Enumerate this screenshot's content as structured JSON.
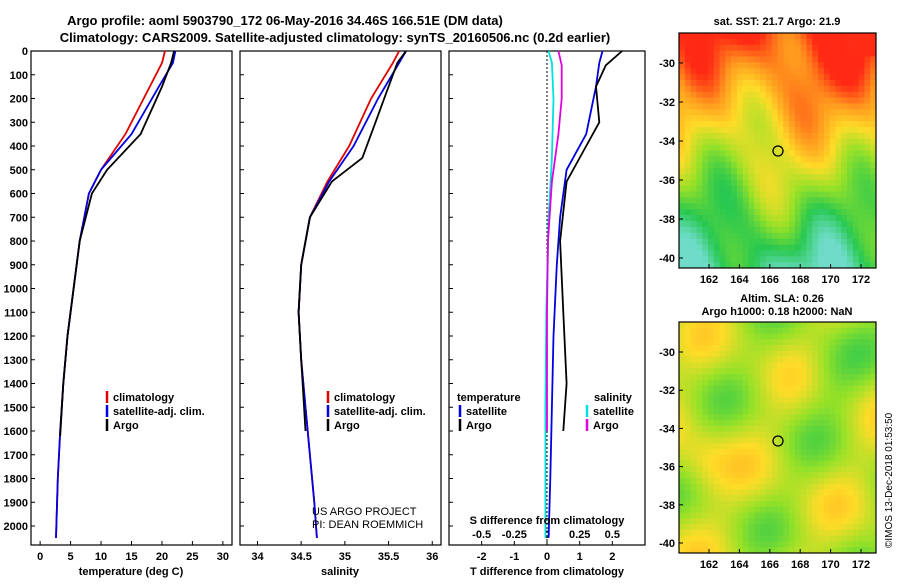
{
  "title_line1": "Argo profile: aoml 5903790_172 06-May-2016 34.46S 166.51E (DM data)",
  "title_line2": "Climatology: CARS2009. Satellite-adjusted climatology: synTS_20160506.nc (0.2d earlier)",
  "depth_ticks": [
    "0",
    "100",
    "200",
    "300",
    "400",
    "500",
    "600",
    "700",
    "800",
    "900",
    "1000",
    "1100",
    "1200",
    "1300",
    "1400",
    "1500",
    "1600",
    "1700",
    "1800",
    "1900",
    "2000"
  ],
  "panel1": {
    "xlabel": "temperature (deg C)",
    "xticks": [
      "0",
      "5",
      "10",
      "15",
      "20",
      "25",
      "30"
    ],
    "legend": [
      "climatology",
      "satellite-adj. clim.",
      "Argo"
    ]
  },
  "panel2": {
    "xlabel": "salinity",
    "xticks": [
      "34",
      "34.5",
      "35",
      "35.5",
      "36"
    ],
    "legend": [
      "climatology",
      "satellite-adj. clim.",
      "Argo"
    ],
    "credit1": "US ARGO PROJECT",
    "credit2": "PI: DEAN ROEMMICH"
  },
  "panel3": {
    "xlabel": "T difference from climatology",
    "top_label": "S difference from climatology",
    "xticks": [
      "-2",
      "-1",
      "0",
      "1",
      "2"
    ],
    "sticks": [
      "-0.5",
      "-0.25",
      "0",
      "0.25",
      "0.5"
    ],
    "legend_t_head": "temperature",
    "legend_t": [
      "satellite",
      "Argo"
    ],
    "legend_s_head": "salinity",
    "legend_s": [
      "satellite",
      "Argo"
    ]
  },
  "map1": {
    "title": "sat. SST: 21.7 Argo: 21.9",
    "lat_ticks": [
      "-30",
      "-32",
      "-34",
      "-36",
      "-38",
      "-40"
    ],
    "lon_ticks": [
      "162",
      "164",
      "166",
      "168",
      "170",
      "172"
    ]
  },
  "map2": {
    "title1": "Altim. SLA: 0.26",
    "title2": "Argo h1000: 0.18 h2000: NaN",
    "lat_ticks": [
      "-30",
      "-32",
      "-34",
      "-36",
      "-38",
      "-40"
    ],
    "lon_ticks": [
      "162",
      "164",
      "166",
      "168",
      "170",
      "172"
    ]
  },
  "stamp": "©IMOS 13-Dec-2018 01:53:50",
  "colors": {
    "clim": "#e00000",
    "sat": "#0000e0",
    "argo": "#000000",
    "sat_s": "#00e0e0",
    "argo_s": "#e000e0"
  },
  "chart_data": [
    {
      "type": "line",
      "xlabel": "temperature (deg C)",
      "ylabel": "",
      "xlim": [
        -1.5,
        31.5
      ],
      "ylim": [
        2080,
        0
      ],
      "series": [
        {
          "name": "climatology",
          "x": [
            20.5,
            20,
            18,
            14,
            10,
            8,
            6.5,
            5.5,
            4.5,
            3.8,
            3.3,
            2.9,
            2.6
          ],
          "y": [
            0,
            50,
            150,
            350,
            500,
            600,
            800,
            1000,
            1200,
            1400,
            1600,
            1800,
            2050
          ]
        },
        {
          "name": "satellite-adj. clim.",
          "x": [
            22.2,
            21.8,
            19.5,
            15,
            10,
            8,
            6.5,
            5.5,
            4.5,
            3.8,
            3.3,
            2.9,
            2.6
          ],
          "y": [
            0,
            50,
            150,
            350,
            500,
            600,
            800,
            1000,
            1200,
            1400,
            1600,
            1800,
            2050
          ]
        },
        {
          "name": "Argo",
          "x": [
            22,
            21.5,
            20,
            16.5,
            11,
            8.5,
            6.5,
            5.5,
            4.5,
            3.8,
            3.3
          ],
          "y": [
            0,
            50,
            150,
            350,
            500,
            600,
            800,
            1000,
            1200,
            1400,
            1620
          ]
        }
      ]
    },
    {
      "type": "line",
      "xlabel": "salinity",
      "ylabel": "",
      "xlim": [
        33.8,
        36.1
      ],
      "ylim": [
        2080,
        0
      ],
      "series": [
        {
          "name": "climatology",
          "x": [
            35.62,
            35.55,
            35.3,
            35.05,
            34.8,
            34.6,
            34.5,
            34.47,
            34.5,
            34.55,
            34.6,
            34.65,
            34.68
          ],
          "y": [
            0,
            50,
            200,
            400,
            550,
            700,
            900,
            1100,
            1300,
            1500,
            1700,
            1900,
            2050
          ]
        },
        {
          "name": "satellite-adj. clim.",
          "x": [
            35.7,
            35.62,
            35.38,
            35.1,
            34.82,
            34.6,
            34.5,
            34.47,
            34.5,
            34.55,
            34.6,
            34.65,
            34.68
          ],
          "y": [
            0,
            50,
            200,
            400,
            550,
            700,
            900,
            1100,
            1300,
            1500,
            1700,
            1900,
            2050
          ]
        },
        {
          "name": "Argo",
          "x": [
            35.7,
            35.6,
            35.45,
            35.35,
            35.2,
            34.85,
            34.6,
            34.5,
            34.47,
            34.5,
            34.55
          ],
          "y": [
            0,
            50,
            200,
            300,
            450,
            550,
            700,
            900,
            1100,
            1300,
            1600
          ]
        }
      ]
    },
    {
      "type": "line",
      "xlabel": "T difference from climatology",
      "ylabel": "",
      "xlim": [
        -3,
        3
      ],
      "ylim": [
        2080,
        0
      ],
      "series": [
        {
          "name": "satellite (T)",
          "x": [
            1.7,
            1.6,
            1.5,
            1.2,
            0.6,
            0.4,
            0.3,
            0.2,
            0.15,
            0.1,
            0.05
          ],
          "y": [
            0,
            50,
            150,
            350,
            500,
            700,
            900,
            1200,
            1500,
            1800,
            2050
          ]
        },
        {
          "name": "Argo (T)",
          "x": [
            2.3,
            1.8,
            1.5,
            1.6,
            1.2,
            0.6,
            0.4,
            0.5,
            0.6,
            0.5
          ],
          "y": [
            0,
            60,
            150,
            300,
            400,
            550,
            800,
            1100,
            1400,
            1600
          ]
        },
        {
          "name": "satellite (S)",
          "x": [
            0.05,
            0.15,
            0.2,
            0.15,
            0.05,
            -0.02,
            -0.05,
            -0.05
          ],
          "y": [
            0,
            50,
            200,
            450,
            700,
            1100,
            1500,
            2050
          ]
        },
        {
          "name": "Argo (S)",
          "x": [
            0.35,
            0.45,
            0.45,
            0.35,
            0.15,
            0.03,
            0,
            0
          ],
          "y": [
            0,
            60,
            200,
            350,
            550,
            800,
            1100,
            1600
          ]
        }
      ]
    }
  ]
}
